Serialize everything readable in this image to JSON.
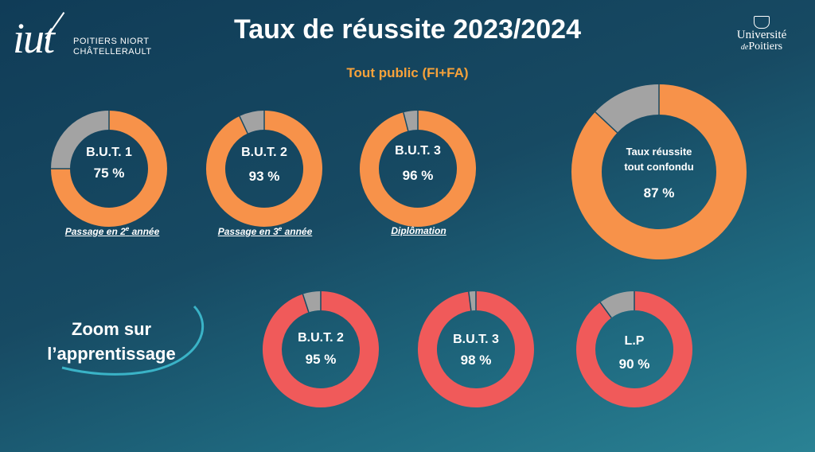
{
  "header": {
    "title": "Taux de réussite 2023/2024",
    "subtitle": "Tout public (FI+FA)"
  },
  "logos": {
    "iut": {
      "letters": "iut",
      "line1": "POITIERS NIORT",
      "line2": "CHÂTELLERAULT"
    },
    "universite": {
      "line1": "Université",
      "line2_prefix": "de",
      "line2": "Poitiers"
    }
  },
  "colors": {
    "orange": "#f7924a",
    "red": "#f05a5a",
    "grey": "#a3a3a3"
  },
  "zoom_label": "Zoom sur l’apprentissage",
  "captions": {
    "but1": {
      "pre": "Passage en 2",
      "sup": "e",
      "post": " année"
    },
    "but2": {
      "pre": "Passage en 3",
      "sup": "e",
      "post": " année"
    },
    "but3": {
      "text": "Diplômation"
    }
  },
  "chart_data": [
    {
      "type": "pie",
      "name": "B.U.T. 1",
      "value_label": "75 %",
      "values": [
        75,
        25
      ],
      "colors": [
        "#f7924a",
        "#a3a3a3"
      ]
    },
    {
      "type": "pie",
      "name": "B.U.T. 2",
      "value_label": "93 %",
      "values": [
        93,
        7
      ],
      "colors": [
        "#f7924a",
        "#a3a3a3"
      ]
    },
    {
      "type": "pie",
      "name": "B.U.T. 3",
      "value_label": "96 %",
      "values": [
        96,
        4
      ],
      "colors": [
        "#f7924a",
        "#a3a3a3"
      ]
    },
    {
      "type": "pie",
      "name": "Taux réussite tout confondu",
      "name_lines": [
        "Taux réussite",
        "tout confondu"
      ],
      "value_label": "87 %",
      "values": [
        87,
        13
      ],
      "colors": [
        "#f7924a",
        "#a3a3a3"
      ]
    },
    {
      "type": "pie",
      "name": "B.U.T. 2",
      "value_label": "95 %",
      "values": [
        95,
        5
      ],
      "colors": [
        "#f05a5a",
        "#a3a3a3"
      ]
    },
    {
      "type": "pie",
      "name": "B.U.T. 3",
      "value_label": "98 %",
      "values": [
        98,
        2
      ],
      "colors": [
        "#f05a5a",
        "#a3a3a3"
      ]
    },
    {
      "type": "pie",
      "name": "L.P",
      "value_label": "90 %",
      "values": [
        90,
        10
      ],
      "colors": [
        "#f05a5a",
        "#a3a3a3"
      ]
    }
  ]
}
